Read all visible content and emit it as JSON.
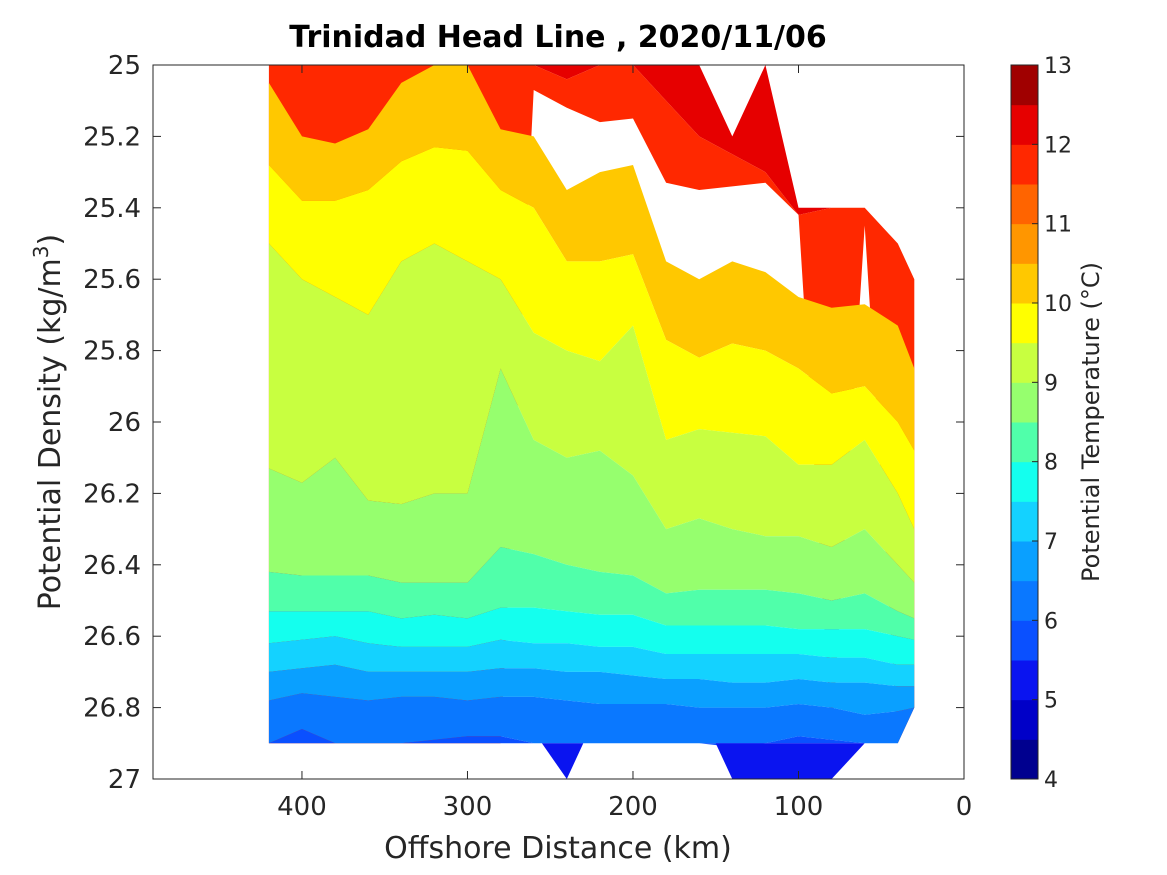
{
  "chart_data": {
    "type": "contourf",
    "title": "Trinidad Head Line , 2020/11/06",
    "xlabel": "Offshore Distance (km)",
    "ylabel_main": "Potential Density (kg/m",
    "ylabel_sup": "3",
    "ylabel_close": ")",
    "colorbar_label": "Potential Temperature (°C)",
    "x_axis": {
      "min": 0,
      "max": 490,
      "reversed": true,
      "ticks": [
        400,
        300,
        200,
        100,
        0
      ]
    },
    "y_axis": {
      "min": 25,
      "max": 27,
      "reversed": true,
      "ticks": [
        "25",
        "25.2",
        "25.4",
        "25.6",
        "25.8",
        "26",
        "26.2",
        "26.4",
        "26.6",
        "26.8",
        "27"
      ]
    },
    "colorbar": {
      "min": 4,
      "max": 13,
      "step": 0.5,
      "ticks": [
        4,
        5,
        6,
        7,
        8,
        9,
        10,
        11,
        12,
        13
      ],
      "colors": [
        "#00008f",
        "#0000c8",
        "#0a14f0",
        "#0a50ff",
        "#0a78ff",
        "#0aa0ff",
        "#14d2ff",
        "#14ffee",
        "#50ffaa",
        "#96ff6e",
        "#c8ff40",
        "#ffff00",
        "#ffc800",
        "#ff9600",
        "#ff6400",
        "#ff2800",
        "#e60000",
        "#a00000"
      ]
    },
    "boundaries_at_x": [
      420,
      400,
      380,
      360,
      340,
      320,
      300,
      280,
      260,
      240,
      220,
      200,
      180,
      160,
      140,
      120,
      100,
      80,
      60,
      40,
      30,
      20
    ],
    "temperature_isopycnals": [
      {
        "level": 11.5,
        "y": [
          null,
          null,
          null,
          null,
          null,
          null,
          null,
          null,
          null,
          25.04,
          25.0,
          25.0,
          25.1,
          25.2,
          25.25,
          25.3,
          25.42,
          null,
          null,
          null,
          null,
          null
        ]
      },
      {
        "level": 11,
        "y": [
          null,
          null,
          null,
          null,
          null,
          null,
          null,
          null,
          25.07,
          25.12,
          25.16,
          25.15,
          25.33,
          25.35,
          25.34,
          25.33,
          25.38,
          null,
          25.45,
          null,
          null,
          null
        ]
      },
      {
        "level": 10.5,
        "y": [
          null,
          25.07,
          25.05,
          25.0,
          null,
          null,
          null,
          25.05,
          25.15,
          25.18,
          25.24,
          25.22,
          25.42,
          25.45,
          25.47,
          25.45,
          25.53,
          25.56,
          25.52,
          25.6,
          25.68,
          25.75
        ]
      },
      {
        "level": 10,
        "y": [
          25.05,
          25.2,
          25.22,
          25.18,
          25.05,
          25.0,
          25.0,
          25.18,
          25.2,
          25.35,
          25.3,
          25.28,
          25.55,
          25.6,
          25.55,
          25.58,
          25.65,
          25.68,
          25.67,
          25.73,
          25.85,
          25.92
        ]
      },
      {
        "level": 9.5,
        "y": [
          25.28,
          25.38,
          25.38,
          25.35,
          25.27,
          25.23,
          25.24,
          25.35,
          25.4,
          25.55,
          25.55,
          25.53,
          25.77,
          25.82,
          25.78,
          25.8,
          25.85,
          25.92,
          25.9,
          26.0,
          26.08,
          26.12
        ]
      },
      {
        "level": 9,
        "y": [
          25.5,
          25.6,
          25.65,
          25.7,
          25.55,
          25.5,
          25.55,
          25.6,
          25.75,
          25.8,
          25.83,
          25.73,
          26.05,
          26.02,
          26.03,
          26.04,
          26.12,
          26.12,
          26.05,
          26.2,
          26.3,
          26.2
        ]
      },
      {
        "level": 8.5,
        "y": [
          26.13,
          26.17,
          26.1,
          26.22,
          26.23,
          26.2,
          26.2,
          25.85,
          26.05,
          26.1,
          26.08,
          26.15,
          26.3,
          26.27,
          26.3,
          26.32,
          26.32,
          26.35,
          26.3,
          26.4,
          26.45,
          null
        ]
      },
      {
        "level": 8,
        "y": [
          26.42,
          26.43,
          26.43,
          26.43,
          26.45,
          26.45,
          26.45,
          26.35,
          26.37,
          26.4,
          26.42,
          26.43,
          26.48,
          26.47,
          26.47,
          26.47,
          26.48,
          26.5,
          26.48,
          26.53,
          26.55,
          null
        ]
      },
      {
        "level": 7.5,
        "y": [
          26.53,
          26.53,
          26.53,
          26.53,
          26.55,
          26.54,
          26.55,
          26.52,
          26.52,
          26.53,
          26.54,
          26.54,
          26.57,
          26.57,
          26.57,
          26.57,
          26.58,
          26.58,
          26.58,
          26.6,
          26.61,
          null
        ]
      },
      {
        "level": 7,
        "y": [
          26.62,
          26.61,
          26.6,
          26.62,
          26.63,
          26.63,
          26.63,
          26.61,
          26.62,
          26.62,
          26.63,
          26.63,
          26.65,
          26.65,
          26.65,
          26.65,
          26.65,
          26.66,
          26.66,
          26.68,
          26.68,
          null
        ]
      },
      {
        "level": 6.5,
        "y": [
          26.7,
          26.69,
          26.68,
          26.7,
          26.7,
          26.7,
          26.7,
          26.69,
          26.69,
          26.7,
          26.7,
          26.71,
          26.72,
          26.72,
          26.73,
          26.73,
          26.72,
          26.73,
          26.73,
          26.74,
          26.74,
          null
        ]
      },
      {
        "level": 6,
        "y": [
          26.78,
          26.76,
          26.77,
          26.78,
          26.77,
          26.77,
          26.78,
          26.77,
          26.77,
          26.78,
          26.79,
          26.79,
          26.79,
          26.8,
          26.8,
          26.8,
          26.79,
          26.8,
          26.82,
          26.81,
          26.8,
          null
        ]
      },
      {
        "level": 5.5,
        "y": [
          26.9,
          26.86,
          26.9,
          26.9,
          26.9,
          26.89,
          26.88,
          26.88,
          26.9,
          26.9,
          26.9,
          26.9,
          26.9,
          26.9,
          26.91,
          26.9,
          26.88,
          26.89,
          26.9,
          26.9,
          null,
          null
        ]
      }
    ],
    "data_bottom_y": [
      26.9,
      26.9,
      26.9,
      26.9,
      26.9,
      26.9,
      26.9,
      26.9,
      26.9,
      26.9,
      26.9,
      26.9,
      26.9,
      26.9,
      26.9,
      26.9,
      26.9,
      26.9,
      26.9,
      26.9,
      26.8,
      null
    ],
    "data_top_y": [
      25.0,
      25.0,
      25.0,
      25.0,
      25.0,
      25.0,
      25.0,
      25.0,
      25.0,
      25.0,
      25.0,
      25.0,
      25.0,
      25.0,
      25.2,
      25.0,
      25.4,
      25.4,
      25.4,
      25.5,
      25.6,
      25.6
    ]
  }
}
